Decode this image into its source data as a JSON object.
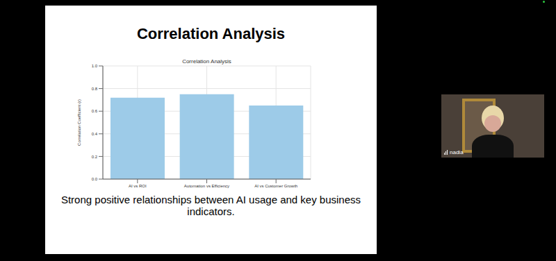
{
  "slide": {
    "title": "Correlation Analysis",
    "caption": "Strong positive relationships between AI usage and key business indicators."
  },
  "chart_data": {
    "type": "bar",
    "title": "Correlation Analysis",
    "y_label": "Correlation Coefficient (r)",
    "categories": [
      "AI vs ROI",
      "Automation vs Efficiency",
      "AI vs Customer Growth"
    ],
    "values": [
      0.72,
      0.75,
      0.65
    ],
    "color": "#9dcbe8",
    "ylim": [
      0,
      1
    ],
    "yticks": [
      {
        "value": 0,
        "label": "0.0"
      },
      0.2,
      0.4,
      0.6,
      0.8,
      {
        "value": 1,
        "label": "1.0"
      }
    ],
    "grid": true
  },
  "participant": {
    "name": "nadia"
  }
}
